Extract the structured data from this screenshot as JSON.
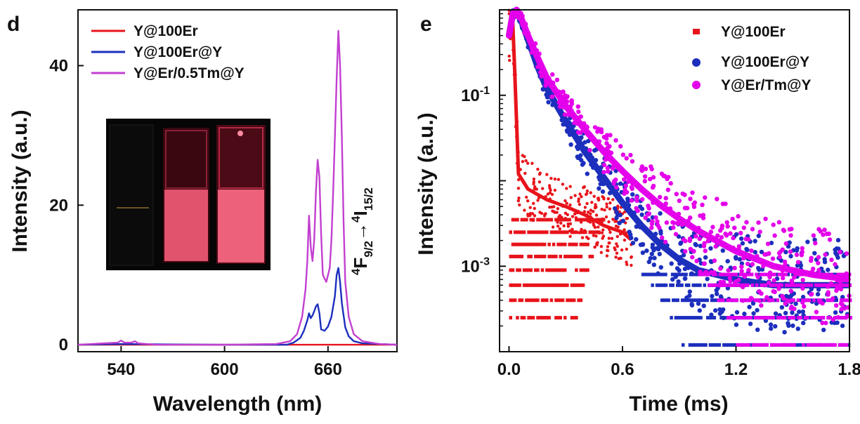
{
  "panels": {
    "left": "d",
    "right": "e"
  },
  "colors": {
    "Y@100Er": "#e8131b",
    "Y@100Er@Y": "#1c2fbd",
    "Y@Er/0.5Tm@Y": "#c23fd0",
    "Y@Er/Tm@Y": "#e400ea"
  },
  "inset_photo": {
    "description": "three cuvettes under excitation, right two glowing red"
  },
  "chart_data": [
    {
      "type": "line",
      "panel": "d",
      "xlabel": "Wavelength (nm)",
      "ylabel": "Intensity (a.u.)",
      "xlim": [
        515,
        700
      ],
      "ylim": [
        -1,
        48
      ],
      "xticks": [
        540,
        600,
        660
      ],
      "yticks": [
        0,
        20,
        40
      ],
      "legend_position": "top-left",
      "annotation": {
        "pre1": "4",
        "main1": "F",
        "sub1": "9/2",
        "arrow": "→",
        "pre2": "4",
        "main2": "I",
        "sub2": "15/2"
      },
      "series": [
        {
          "name": "Y@100Er",
          "color_key": "Y@100Er",
          "x": [
            515,
            540,
            560,
            600,
            640,
            660,
            680,
            700
          ],
          "y": [
            0,
            0,
            0,
            0,
            0,
            0,
            0,
            0
          ]
        },
        {
          "name": "Y@100Er@Y",
          "color_key": "Y@100Er@Y",
          "x": [
            515,
            540,
            600,
            636,
            640,
            644,
            646,
            648,
            649,
            650,
            651,
            652,
            653,
            654,
            655,
            656,
            658,
            660,
            662,
            664,
            665,
            666,
            667,
            668,
            670,
            672,
            675,
            680,
            700
          ],
          "y": [
            0,
            0.1,
            0,
            0,
            0.3,
            1.0,
            2.0,
            3.5,
            4.5,
            3.8,
            4.2,
            4.8,
            5.5,
            5.8,
            4.5,
            2.2,
            2.0,
            2.6,
            4.0,
            7.0,
            10.0,
            11.0,
            9.0,
            6.0,
            2.5,
            1.2,
            0.5,
            0.2,
            0
          ]
        },
        {
          "name": "Y@Er/0.5Tm@Y",
          "color_key": "Y@Er/0.5Tm@Y",
          "x": [
            515,
            530,
            538,
            540,
            542,
            546,
            548,
            550,
            560,
            600,
            630,
            638,
            642,
            645,
            647,
            648,
            649,
            650,
            651,
            652,
            653,
            654,
            655,
            656,
            657,
            659,
            661,
            662,
            663,
            664,
            665,
            666,
            667,
            668,
            669,
            670,
            672,
            675,
            680,
            690,
            700
          ],
          "y": [
            0,
            0.2,
            0.3,
            0.6,
            0.3,
            0.3,
            0.5,
            0.2,
            0,
            0,
            0.1,
            0.5,
            1.5,
            4.0,
            8.0,
            12.0,
            18.5,
            14.0,
            12.0,
            15.0,
            22.0,
            26.5,
            24.0,
            16.0,
            10.0,
            9.0,
            11.0,
            15.0,
            22.0,
            30.0,
            38.0,
            45.0,
            40.0,
            30.0,
            18.0,
            9.0,
            4.0,
            1.5,
            0.5,
            0.1,
            0
          ]
        }
      ]
    },
    {
      "type": "scatter",
      "panel": "e",
      "xlabel": "Time (ms)",
      "ylabel": "Intensity (a.u.)",
      "yscale": "log",
      "xlim": [
        -0.05,
        1.8
      ],
      "ylim": [
        0.0001,
        1
      ],
      "xticks": [
        0.0,
        0.6,
        1.2,
        1.8
      ],
      "xtick_labels": [
        "0.0",
        "0.6",
        "1.2",
        "1.8"
      ],
      "yticks": [
        0.1,
        0.001
      ],
      "ytick_base": [
        "10",
        "10"
      ],
      "ytick_exp": [
        "-1",
        "-3"
      ],
      "legend_position": "top-right",
      "series": [
        {
          "name": "Y@100Er",
          "color_key": "Y@100Er",
          "x": [
            0.0,
            0.01,
            0.02,
            0.03,
            0.05,
            0.1,
            0.2,
            0.3,
            0.4,
            0.5,
            0.6,
            0.65
          ],
          "y": [
            0.5,
            0.8,
            0.7,
            0.2,
            0.012,
            0.008,
            0.006,
            0.005,
            0.004,
            0.003,
            0.0025,
            0.002
          ]
        },
        {
          "name": "Y@100Er@Y",
          "color_key": "Y@100Er@Y",
          "x": [
            0.0,
            0.02,
            0.04,
            0.06,
            0.1,
            0.15,
            0.2,
            0.3,
            0.4,
            0.5,
            0.6,
            0.7,
            0.8,
            0.9,
            1.0,
            1.2,
            1.4,
            1.6,
            1.8
          ],
          "y": [
            0.5,
            0.9,
            1.0,
            0.8,
            0.45,
            0.22,
            0.12,
            0.05,
            0.022,
            0.011,
            0.0055,
            0.003,
            0.0018,
            0.0012,
            0.0009,
            0.0007,
            0.0006,
            0.0006,
            0.0006
          ]
        },
        {
          "name": "Y@Er/Tm@Y",
          "color_key": "Y@Er/Tm@Y",
          "x": [
            0.0,
            0.02,
            0.04,
            0.06,
            0.1,
            0.15,
            0.2,
            0.3,
            0.4,
            0.5,
            0.6,
            0.7,
            0.8,
            0.9,
            1.0,
            1.2,
            1.4,
            1.6,
            1.8
          ],
          "y": [
            0.5,
            0.9,
            1.0,
            0.85,
            0.5,
            0.28,
            0.16,
            0.075,
            0.04,
            0.022,
            0.013,
            0.008,
            0.0052,
            0.0036,
            0.0026,
            0.0015,
            0.001,
            0.0008,
            0.0007
          ]
        }
      ]
    }
  ]
}
